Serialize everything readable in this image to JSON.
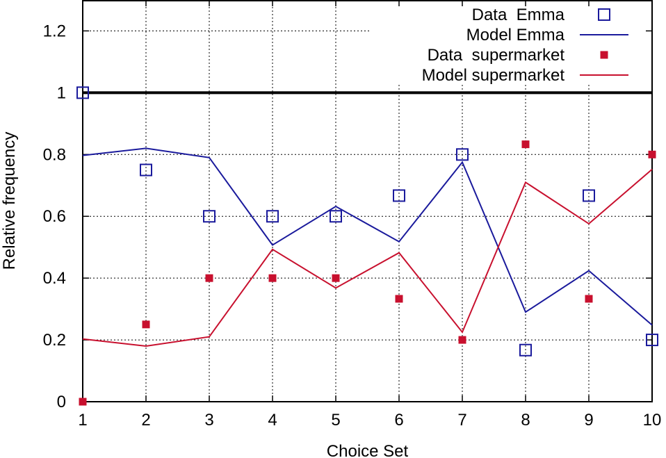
{
  "chart_data": {
    "type": "line",
    "xlabel": "Choice Set",
    "ylabel": "Relative frequency",
    "x": [
      1,
      2,
      3,
      4,
      5,
      6,
      7,
      8,
      9,
      10
    ],
    "xlim": [
      1,
      10
    ],
    "ylim": [
      0,
      1.3
    ],
    "x_ticks": [
      "1",
      "2",
      "3",
      "4",
      "5",
      "6",
      "7",
      "8",
      "9",
      "10"
    ],
    "y_ticks": [
      {
        "value": 0,
        "label": "0"
      },
      {
        "value": 0.2,
        "label": "0.2"
      },
      {
        "value": 0.4,
        "label": "0.4"
      },
      {
        "value": 0.6,
        "label": "0.6"
      },
      {
        "value": 0.8,
        "label": "0.8"
      },
      {
        "value": 1.0,
        "label": "1"
      },
      {
        "value": 1.2,
        "label": "1.2"
      }
    ],
    "grid": true,
    "legend_position": "top-right",
    "reference_line": {
      "y": 1.0,
      "color": "#000000"
    },
    "series": [
      {
        "name": "Data  Emma",
        "kind": "points",
        "marker": "open-square",
        "color": "#1a1a9c",
        "values": [
          1.0,
          0.75,
          0.6,
          0.6,
          0.6,
          0.667,
          0.8,
          0.167,
          0.667,
          0.2
        ]
      },
      {
        "name": "Model Emma",
        "kind": "line",
        "color": "#1a1a9c",
        "values": [
          0.797,
          0.82,
          0.79,
          0.507,
          0.632,
          0.518,
          0.775,
          0.29,
          0.424,
          0.248
        ]
      },
      {
        "name": "Data  supermarket",
        "kind": "points",
        "marker": "filled-square",
        "color": "#c8102e",
        "values": [
          0.0,
          0.25,
          0.4,
          0.4,
          0.4,
          0.333,
          0.2,
          0.833,
          0.333,
          0.8
        ]
      },
      {
        "name": "Model supermarket",
        "kind": "line",
        "color": "#c8102e",
        "values": [
          0.203,
          0.18,
          0.21,
          0.493,
          0.368,
          0.482,
          0.225,
          0.71,
          0.576,
          0.752
        ]
      }
    ]
  }
}
